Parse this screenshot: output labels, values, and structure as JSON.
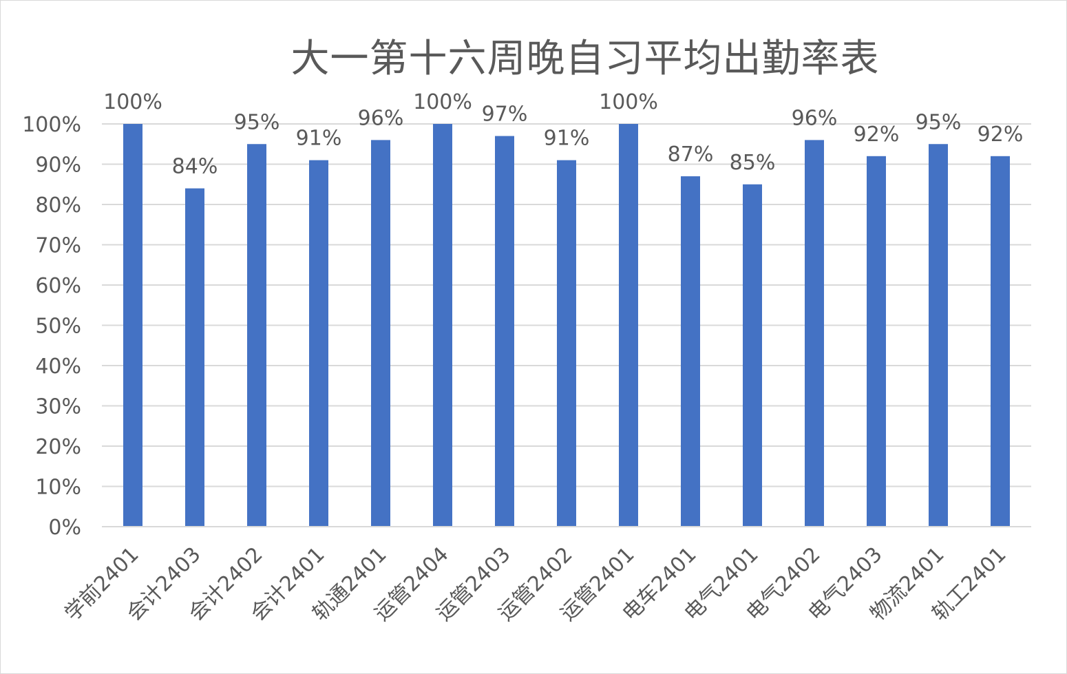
{
  "chart_data": {
    "type": "bar",
    "title": "大一第十六周晚自习平均出勤率表",
    "categories": [
      "学前2401",
      "会计2403",
      "会计2402",
      "会计2401",
      "轨通2401",
      "运管2404",
      "运管2403",
      "运管2402",
      "运管2401",
      "电车2401",
      "电气2401",
      "电气2402",
      "电气2403",
      "物流2401",
      "轨工2401"
    ],
    "values": [
      100,
      84,
      95,
      91,
      96,
      100,
      97,
      91,
      100,
      87,
      85,
      96,
      92,
      95,
      92
    ],
    "data_labels": [
      "100%",
      "84%",
      "95%",
      "91%",
      "96%",
      "100%",
      "97%",
      "91%",
      "100%",
      "87%",
      "85%",
      "96%",
      "92%",
      "95%",
      "92%"
    ],
    "y_ticks": [
      0,
      10,
      20,
      30,
      40,
      50,
      60,
      70,
      80,
      90,
      100
    ],
    "y_tick_labels": [
      "0%",
      "10%",
      "20%",
      "30%",
      "40%",
      "50%",
      "60%",
      "70%",
      "80%",
      "90%",
      "100%"
    ],
    "ylim": [
      0,
      100
    ],
    "grid": true,
    "legend": "none",
    "colors": {
      "bar": "#4472C4",
      "grid": "#d9d9d9",
      "axis": "#d9d9d9",
      "text": "#595959"
    }
  }
}
